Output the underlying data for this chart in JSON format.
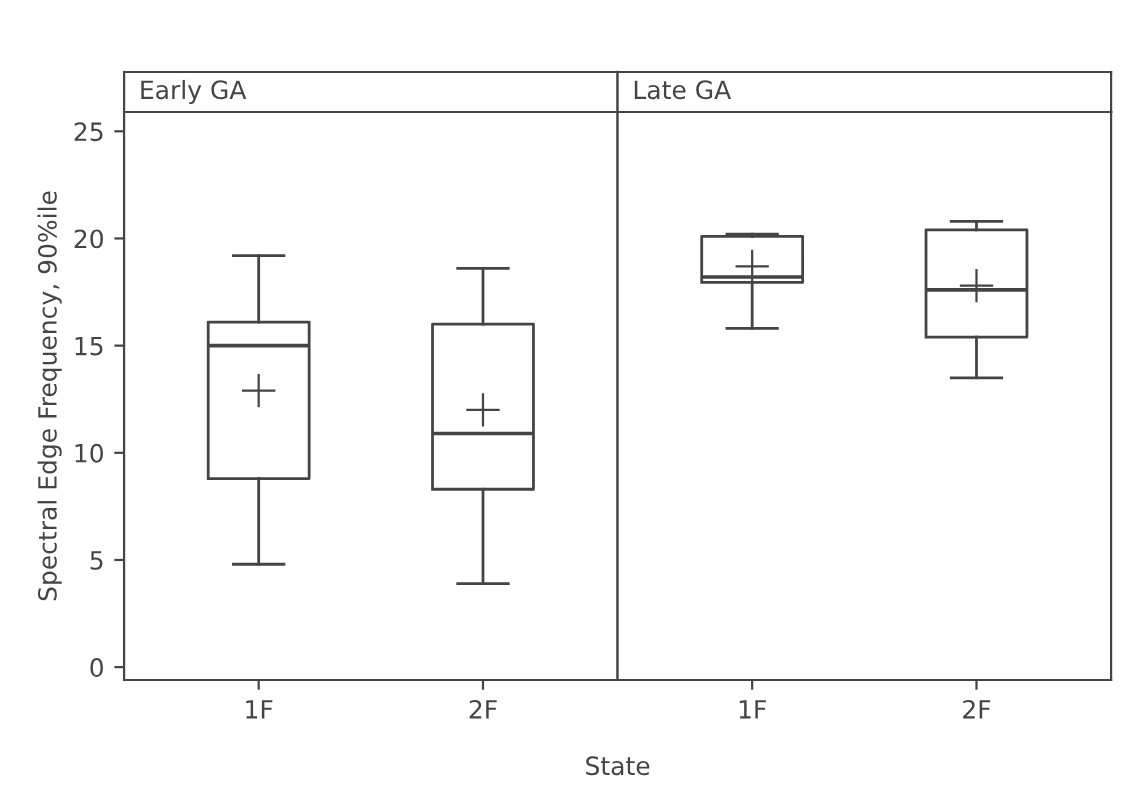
{
  "chart_data": [
    {
      "type": "box",
      "title": "Early GA",
      "ylabel": "Spectral Edge Frequency, 90%ile",
      "xlabel": "State",
      "categories": [
        "1F",
        "2F"
      ],
      "ylim": [
        -0.6,
        25.9
      ],
      "yticks": [
        0,
        5,
        10,
        15,
        20,
        25
      ],
      "grid": false,
      "legend": false,
      "boxes": [
        {
          "low": 4.8,
          "q1": 8.8,
          "median": 15.0,
          "q3": 16.1,
          "high": 19.2,
          "mean": 12.9
        },
        {
          "low": 3.9,
          "q1": 8.3,
          "median": 10.9,
          "q3": 16.0,
          "high": 18.6,
          "mean": 12.0
        }
      ]
    },
    {
      "type": "box",
      "title": "Late GA",
      "categories": [
        "1F",
        "2F"
      ],
      "ylim": [
        -0.6,
        25.9
      ],
      "yticks": [
        0,
        5,
        10,
        15,
        20,
        25
      ],
      "tick_labels": "x",
      "grid": false,
      "legend": false,
      "boxes": [
        {
          "low": 15.8,
          "q1": 17.95,
          "median": 18.2,
          "q3": 20.1,
          "high": 20.2,
          "mean": 18.7
        },
        {
          "low": 13.5,
          "q1": 15.4,
          "median": 17.6,
          "q3": 20.4,
          "high": 20.8,
          "mean": 17.8
        }
      ]
    }
  ]
}
